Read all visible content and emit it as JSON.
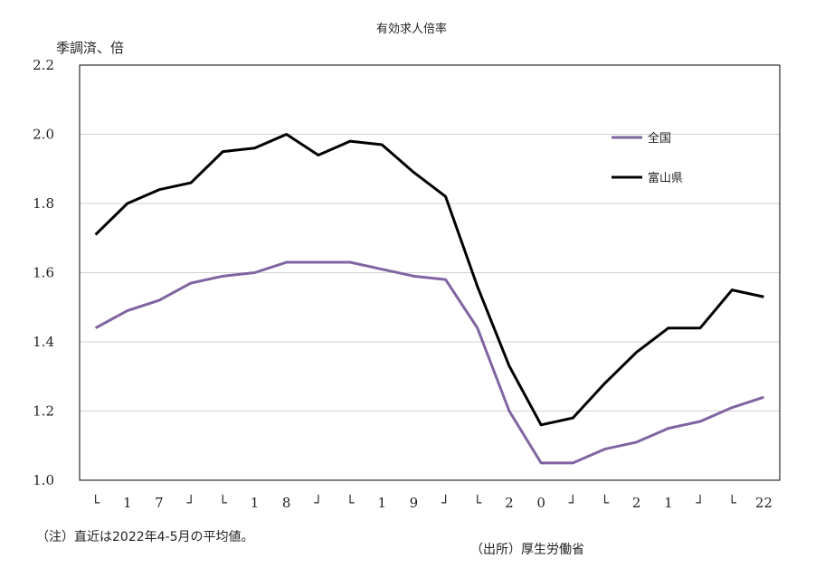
{
  "chart_data": {
    "type": "line",
    "title": "有効求人倍率",
    "ylabel": "季調済、倍",
    "ylim": [
      1.0,
      2.2
    ],
    "yticks": [
      "1.0",
      "1.2",
      "1.4",
      "1.6",
      "1.8",
      "2.0",
      "2.2"
    ],
    "grid": true,
    "legend_position": "top-right",
    "categories": [
      "└",
      "1",
      "7",
      "┘",
      "└",
      "1",
      "8",
      "┘",
      "└",
      "1",
      "9",
      "┘",
      "└",
      "2",
      "0",
      "┘",
      "└",
      "2",
      "1",
      "┘",
      "└",
      "22"
    ],
    "series": [
      {
        "name": "全国",
        "color": "#8064a2",
        "values": [
          1.44,
          1.49,
          1.52,
          1.57,
          1.59,
          1.6,
          1.63,
          1.63,
          1.63,
          1.61,
          1.59,
          1.58,
          1.44,
          1.2,
          1.05,
          1.05,
          1.09,
          1.11,
          1.15,
          1.17,
          1.21,
          1.24
        ]
      },
      {
        "name": "富山県",
        "color": "#000000",
        "values": [
          1.71,
          1.8,
          1.84,
          1.86,
          1.95,
          1.96,
          2.0,
          1.94,
          1.98,
          1.97,
          1.89,
          1.82,
          1.56,
          1.33,
          1.16,
          1.18,
          1.28,
          1.37,
          1.44,
          1.44,
          1.55,
          1.53
        ]
      }
    ],
    "note": "（注）直近は2022年4-5月の平均値。",
    "source": "（出所）厚生労働省"
  }
}
